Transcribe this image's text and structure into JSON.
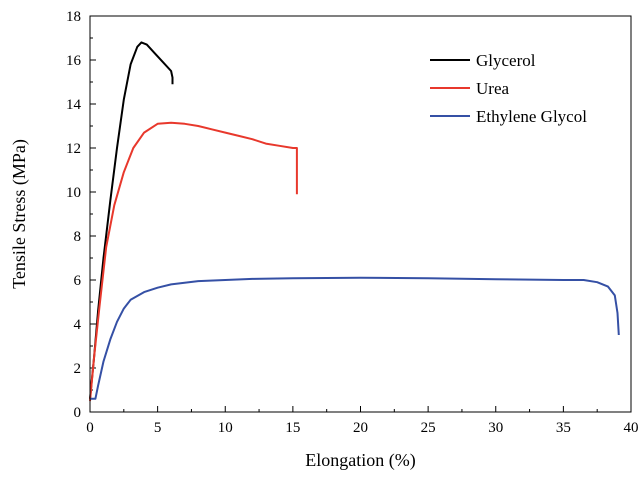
{
  "chart_data": {
    "type": "line",
    "xlabel": "Elongation (%)",
    "ylabel": "Tensile Stress (MPa)",
    "xlim": [
      0,
      40
    ],
    "ylim": [
      0,
      18
    ],
    "xticks": [
      "0",
      "5",
      "10",
      "15",
      "20",
      "25",
      "30",
      "35",
      "40"
    ],
    "yticks": [
      "0",
      "2",
      "4",
      "6",
      "8",
      "10",
      "12",
      "14",
      "16",
      "18"
    ],
    "grid": false,
    "legend_position": "top-right",
    "series": [
      {
        "name": "Glycerol",
        "color": "#000000",
        "x": [
          0,
          0.3,
          0.6,
          1.0,
          1.5,
          2.0,
          2.5,
          3.0,
          3.5,
          3.8,
          4.2,
          4.8,
          5.4,
          6.0,
          6.1,
          6.1
        ],
        "y": [
          0.6,
          2.5,
          4.6,
          7.0,
          9.6,
          12.0,
          14.2,
          15.8,
          16.6,
          16.8,
          16.7,
          16.3,
          15.9,
          15.5,
          15.2,
          14.9
        ]
      },
      {
        "name": "Urea",
        "color": "#e8382c",
        "x": [
          0,
          0.3,
          0.7,
          1.2,
          1.8,
          2.5,
          3.2,
          4.0,
          5.0,
          6.0,
          7.0,
          8.0,
          9.0,
          10.0,
          11.0,
          12.0,
          13.0,
          14.0,
          15.0,
          15.3,
          15.3,
          15.3
        ],
        "y": [
          0.5,
          2.5,
          4.8,
          7.5,
          9.4,
          10.9,
          12.0,
          12.7,
          13.1,
          13.15,
          13.1,
          13.0,
          12.85,
          12.7,
          12.55,
          12.4,
          12.2,
          12.1,
          12.0,
          12.0,
          11.0,
          9.9
        ]
      },
      {
        "name": "Ethylene Glycol",
        "color": "#3550a5",
        "x": [
          0,
          0.4,
          0.6,
          1.0,
          1.5,
          2.0,
          2.5,
          3.0,
          4.0,
          5.0,
          6.0,
          8.0,
          10.0,
          12.0,
          15.0,
          20.0,
          25.0,
          30.0,
          35.0,
          36.5,
          37.5,
          38.3,
          38.8,
          39.0,
          39.1
        ],
        "y": [
          0.6,
          0.6,
          1.2,
          2.3,
          3.3,
          4.1,
          4.7,
          5.1,
          5.45,
          5.65,
          5.8,
          5.95,
          6.0,
          6.05,
          6.08,
          6.1,
          6.08,
          6.03,
          6.0,
          6.0,
          5.9,
          5.7,
          5.3,
          4.5,
          3.5
        ]
      }
    ]
  }
}
